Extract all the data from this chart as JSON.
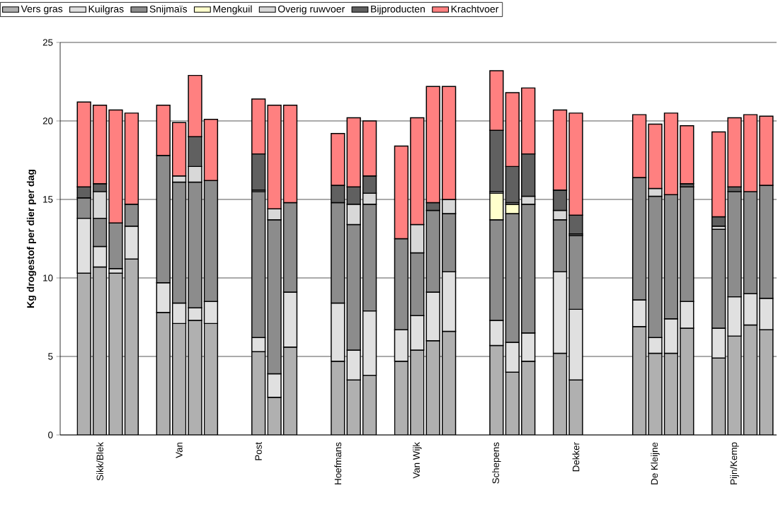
{
  "chart_data": {
    "type": "bar",
    "stacked": true,
    "ylabel": "Kg drogestof per dier per dag",
    "categories": [
      null,
      null,
      "Sikk/Blek",
      null,
      null,
      null,
      null,
      "Van",
      null,
      null,
      null,
      null,
      "Post",
      null,
      null,
      null,
      null,
      "Hoefmans",
      null,
      null,
      null,
      null,
      "Van Wijk",
      null,
      null,
      null,
      null,
      "Schepens",
      null,
      null,
      null,
      null,
      "Dekker",
      null,
      null,
      null,
      null,
      "De Kleijne",
      null,
      null,
      null,
      null,
      "Pijn/Kemp",
      null,
      null
    ],
    "series": [
      {
        "name": "Vers gras",
        "color": "#b0b0b0",
        "values": [
          null,
          10.3,
          10.7,
          10.3,
          11.2,
          null,
          7.8,
          7.1,
          7.3,
          7.1,
          null,
          null,
          5.3,
          2.4,
          5.6,
          null,
          null,
          4.7,
          3.5,
          3.8,
          null,
          4.7,
          5.4,
          6.0,
          6.6,
          null,
          null,
          5.7,
          4.0,
          4.7,
          null,
          5.2,
          3.5,
          null,
          null,
          null,
          6.9,
          5.2,
          5.2,
          6.8,
          null,
          4.9,
          6.3,
          7.0,
          6.7
        ]
      },
      {
        "name": "Kuilgras",
        "color": "#e0e0e0",
        "values": [
          null,
          3.5,
          1.3,
          0.3,
          2.1,
          null,
          1.9,
          1.3,
          0.8,
          1.4,
          null,
          null,
          0.9,
          1.5,
          3.5,
          null,
          null,
          3.7,
          1.9,
          4.1,
          null,
          2.0,
          2.2,
          3.1,
          3.8,
          null,
          null,
          1.6,
          1.9,
          1.8,
          null,
          5.2,
          4.5,
          null,
          null,
          null,
          1.7,
          1.0,
          2.2,
          1.7,
          null,
          1.9,
          2.5,
          2.0,
          2.0
        ]
      },
      {
        "name": "Snijmaïs",
        "color": "#8c8c8c",
        "values": [
          null,
          1.3,
          1.8,
          2.9,
          1.4,
          null,
          8.1,
          7.7,
          8.0,
          7.7,
          null,
          null,
          9.3,
          9.8,
          5.7,
          null,
          null,
          6.4,
          8.0,
          6.8,
          null,
          5.8,
          4.0,
          5.2,
          3.7,
          null,
          null,
          6.4,
          8.2,
          8.2,
          null,
          3.3,
          4.7,
          null,
          null,
          null,
          7.8,
          9.0,
          7.9,
          7.3,
          null,
          6.3,
          6.7,
          6.5,
          7.2
        ]
      },
      {
        "name": "Mengkuil",
        "color": "#ffffcc",
        "values": [
          null,
          null,
          null,
          null,
          null,
          null,
          null,
          null,
          null,
          null,
          null,
          null,
          null,
          null,
          null,
          null,
          null,
          null,
          null,
          null,
          null,
          null,
          null,
          null,
          null,
          null,
          null,
          1.7,
          0.6,
          null,
          null,
          null,
          null,
          null,
          null,
          null,
          null,
          null,
          null,
          null,
          null,
          null,
          null,
          null,
          null
        ]
      },
      {
        "name": "Overig ruwvoer",
        "color": "#d8d8d8",
        "values": [
          null,
          null,
          1.7,
          null,
          null,
          null,
          null,
          0.4,
          1.0,
          null,
          null,
          null,
          0.1,
          0.7,
          null,
          null,
          null,
          null,
          1.3,
          0.7,
          null,
          null,
          1.8,
          null,
          0.9,
          null,
          null,
          0.1,
          0.1,
          0.5,
          null,
          0.6,
          0.1,
          null,
          null,
          null,
          null,
          0.5,
          null,
          null,
          null,
          0.2,
          null,
          null,
          null
        ]
      },
      {
        "name": "Bijproducten",
        "color": "#606060",
        "values": [
          null,
          0.7,
          0.5,
          null,
          null,
          null,
          null,
          null,
          1.9,
          null,
          null,
          null,
          2.3,
          null,
          null,
          null,
          null,
          1.1,
          1.1,
          1.1,
          null,
          null,
          null,
          0.5,
          null,
          null,
          null,
          3.9,
          2.3,
          2.7,
          null,
          1.3,
          1.2,
          null,
          null,
          null,
          null,
          null,
          null,
          0.2,
          null,
          0.6,
          0.3,
          null,
          null
        ]
      },
      {
        "name": "Krachtvoer",
        "color": "#ff8080",
        "values": [
          null,
          5.4,
          5.0,
          7.2,
          5.8,
          null,
          3.2,
          3.4,
          3.9,
          3.9,
          null,
          null,
          3.5,
          6.6,
          6.2,
          null,
          null,
          3.3,
          4.4,
          3.5,
          null,
          5.9,
          6.8,
          7.4,
          7.2,
          null,
          null,
          3.8,
          4.7,
          4.2,
          null,
          5.1,
          6.5,
          null,
          null,
          null,
          4.0,
          4.1,
          5.2,
          3.7,
          null,
          5.4,
          4.4,
          4.9,
          4.4
        ]
      }
    ],
    "ylim": [
      0,
      25
    ],
    "yticks": [
      0,
      5,
      10,
      15,
      20,
      25
    ],
    "grid": "y",
    "legend": "top left"
  }
}
